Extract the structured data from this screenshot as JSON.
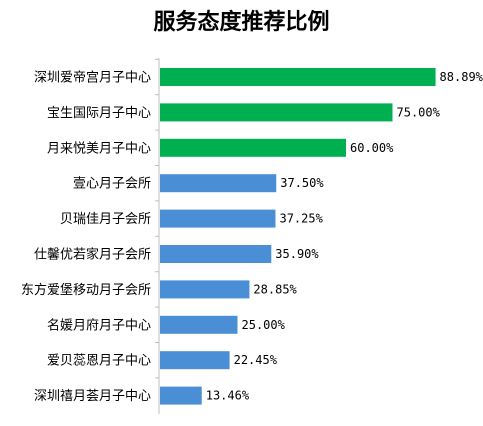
{
  "chart_data": {
    "type": "bar",
    "orientation": "horizontal",
    "title": "服务态度推荐比例",
    "categories": [
      "深圳爱帝宫月子中心",
      "宝生国际月子中心",
      "月来悦美月子中心",
      "壹心月子会所",
      "贝瑞佳月子会所",
      "仕馨优若家月子会所",
      "东方爱堡移动月子会所",
      "名媛月府月子中心",
      "爱贝蕊恩月子中心",
      "深圳禧月荟月子中心"
    ],
    "values": [
      88.89,
      75.0,
      60.0,
      37.5,
      37.25,
      35.9,
      28.85,
      25.0,
      22.45,
      13.46
    ],
    "value_labels": [
      "88.89%",
      "75.00%",
      "60.00%",
      "37.50%",
      "37.25%",
      "35.90%",
      "28.85%",
      "25.00%",
      "22.45%",
      "13.46%"
    ],
    "bar_colors": [
      "#00b050",
      "#00b050",
      "#00b050",
      "#4a8fd6",
      "#4a8fd6",
      "#4a8fd6",
      "#4a8fd6",
      "#4a8fd6",
      "#4a8fd6",
      "#4a8fd6"
    ],
    "xlim": [
      0,
      100
    ],
    "xlabel": "",
    "ylabel": "",
    "grid": false,
    "legend": "none"
  }
}
